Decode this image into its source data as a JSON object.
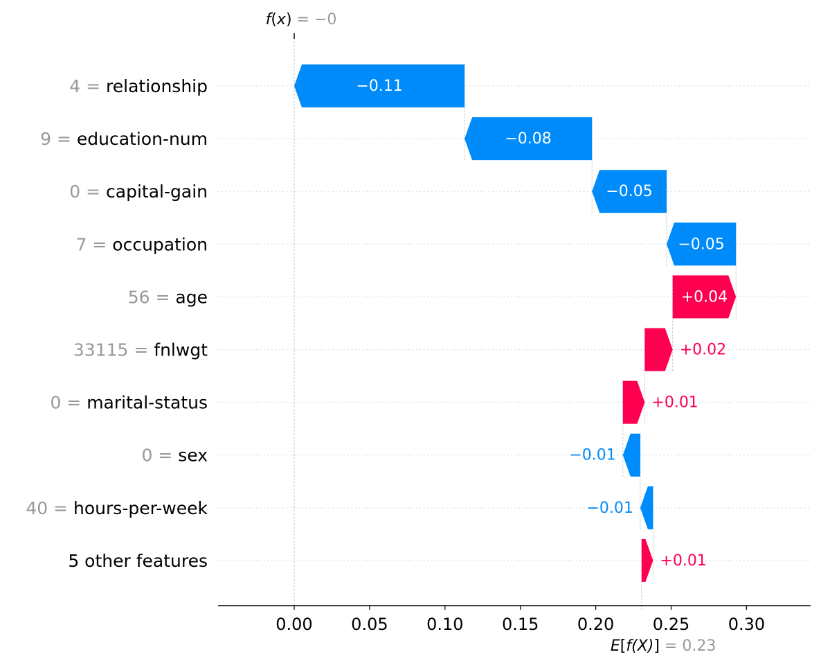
{
  "chart_data": {
    "type": "waterfall",
    "fx_label": {
      "func": "f",
      "var": "x",
      "eq": " = −0"
    },
    "base_label": {
      "func": "E",
      "open": "[",
      "inner": "f",
      "paren": "(X)",
      "close": "]",
      "eq": " = 0.23"
    },
    "base_value": 0.2304,
    "fx_value": 0.0,
    "x_axis": {
      "min": -0.0505,
      "max": 0.3425,
      "ticks": [
        {
          "value": 0.0,
          "label": "0.00"
        },
        {
          "value": 0.05,
          "label": "0.05"
        },
        {
          "value": 0.1,
          "label": "0.10"
        },
        {
          "value": 0.15,
          "label": "0.15"
        },
        {
          "value": 0.2,
          "label": "0.20"
        },
        {
          "value": 0.25,
          "label": "0.25"
        },
        {
          "value": 0.3,
          "label": "0.30"
        }
      ]
    },
    "rows": [
      {
        "value_text": "4",
        "feature": "relationship",
        "contribution": -0.113,
        "label": "−0.11",
        "start": 0.113,
        "end": 0.0
      },
      {
        "value_text": "9",
        "feature": "education-num",
        "contribution": -0.0845,
        "label": "−0.08",
        "start": 0.1975,
        "end": 0.113
      },
      {
        "value_text": "0",
        "feature": "capital-gain",
        "contribution": -0.0495,
        "label": "−0.05",
        "start": 0.247,
        "end": 0.1975
      },
      {
        "value_text": "7",
        "feature": "occupation",
        "contribution": -0.046,
        "label": "−0.05",
        "start": 0.293,
        "end": 0.247
      },
      {
        "value_text": "56",
        "feature": "age",
        "contribution": 0.042,
        "label": "+0.04",
        "start": 0.251,
        "end": 0.293
      },
      {
        "value_text": "33115",
        "feature": "fnlwgt",
        "contribution": 0.0185,
        "label": "+0.02",
        "start": 0.2325,
        "end": 0.251
      },
      {
        "value_text": "0",
        "feature": "marital-status",
        "contribution": 0.0145,
        "label": "+0.01",
        "start": 0.218,
        "end": 0.2325
      },
      {
        "value_text": "0",
        "feature": "sex",
        "contribution": -0.0115,
        "label": "−0.01",
        "start": 0.2295,
        "end": 0.218
      },
      {
        "value_text": "40",
        "feature": "hours-per-week",
        "contribution": -0.0085,
        "label": "−0.01",
        "start": 0.238,
        "end": 0.2295
      },
      {
        "value_text": "",
        "feature": "5 other features",
        "contribution": 0.0076,
        "label": "+0.01",
        "start": 0.2304,
        "end": 0.238
      }
    ],
    "colors": {
      "positive": "#ff0051",
      "negative": "#008bfb",
      "value_gray": "#999999",
      "text": "#000000",
      "grid": "#cccccc"
    },
    "grid": true
  }
}
